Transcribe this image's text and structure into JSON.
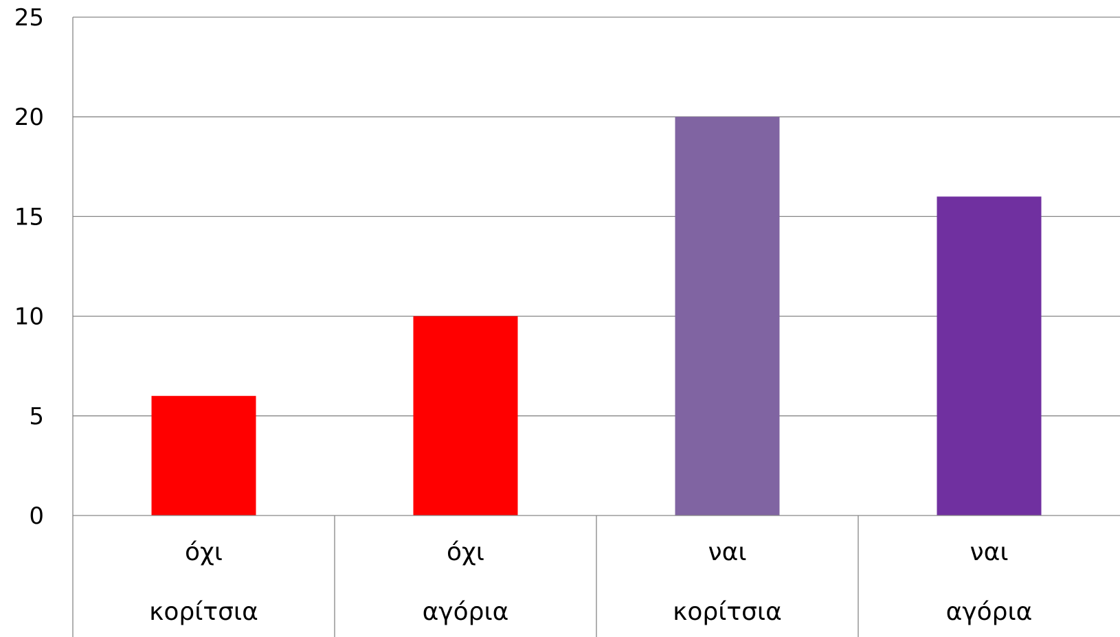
{
  "chart_data": {
    "type": "bar",
    "title": "",
    "xlabel": "",
    "ylabel": "",
    "categories": [
      [
        "όχι",
        "κορίτσια"
      ],
      [
        "όχι",
        "αγόρια"
      ],
      [
        "ναι",
        "κορίτσια"
      ],
      [
        "ναι",
        "αγόρια"
      ]
    ],
    "values": [
      6,
      10,
      20,
      16
    ],
    "bar_colors": [
      "#ff0000",
      "#ff0000",
      "#8064a2",
      "#7030a0"
    ],
    "ylim": [
      0,
      25
    ],
    "yticks": [
      0,
      5,
      10,
      15,
      20,
      25
    ],
    "grid": true,
    "legend": "none"
  }
}
